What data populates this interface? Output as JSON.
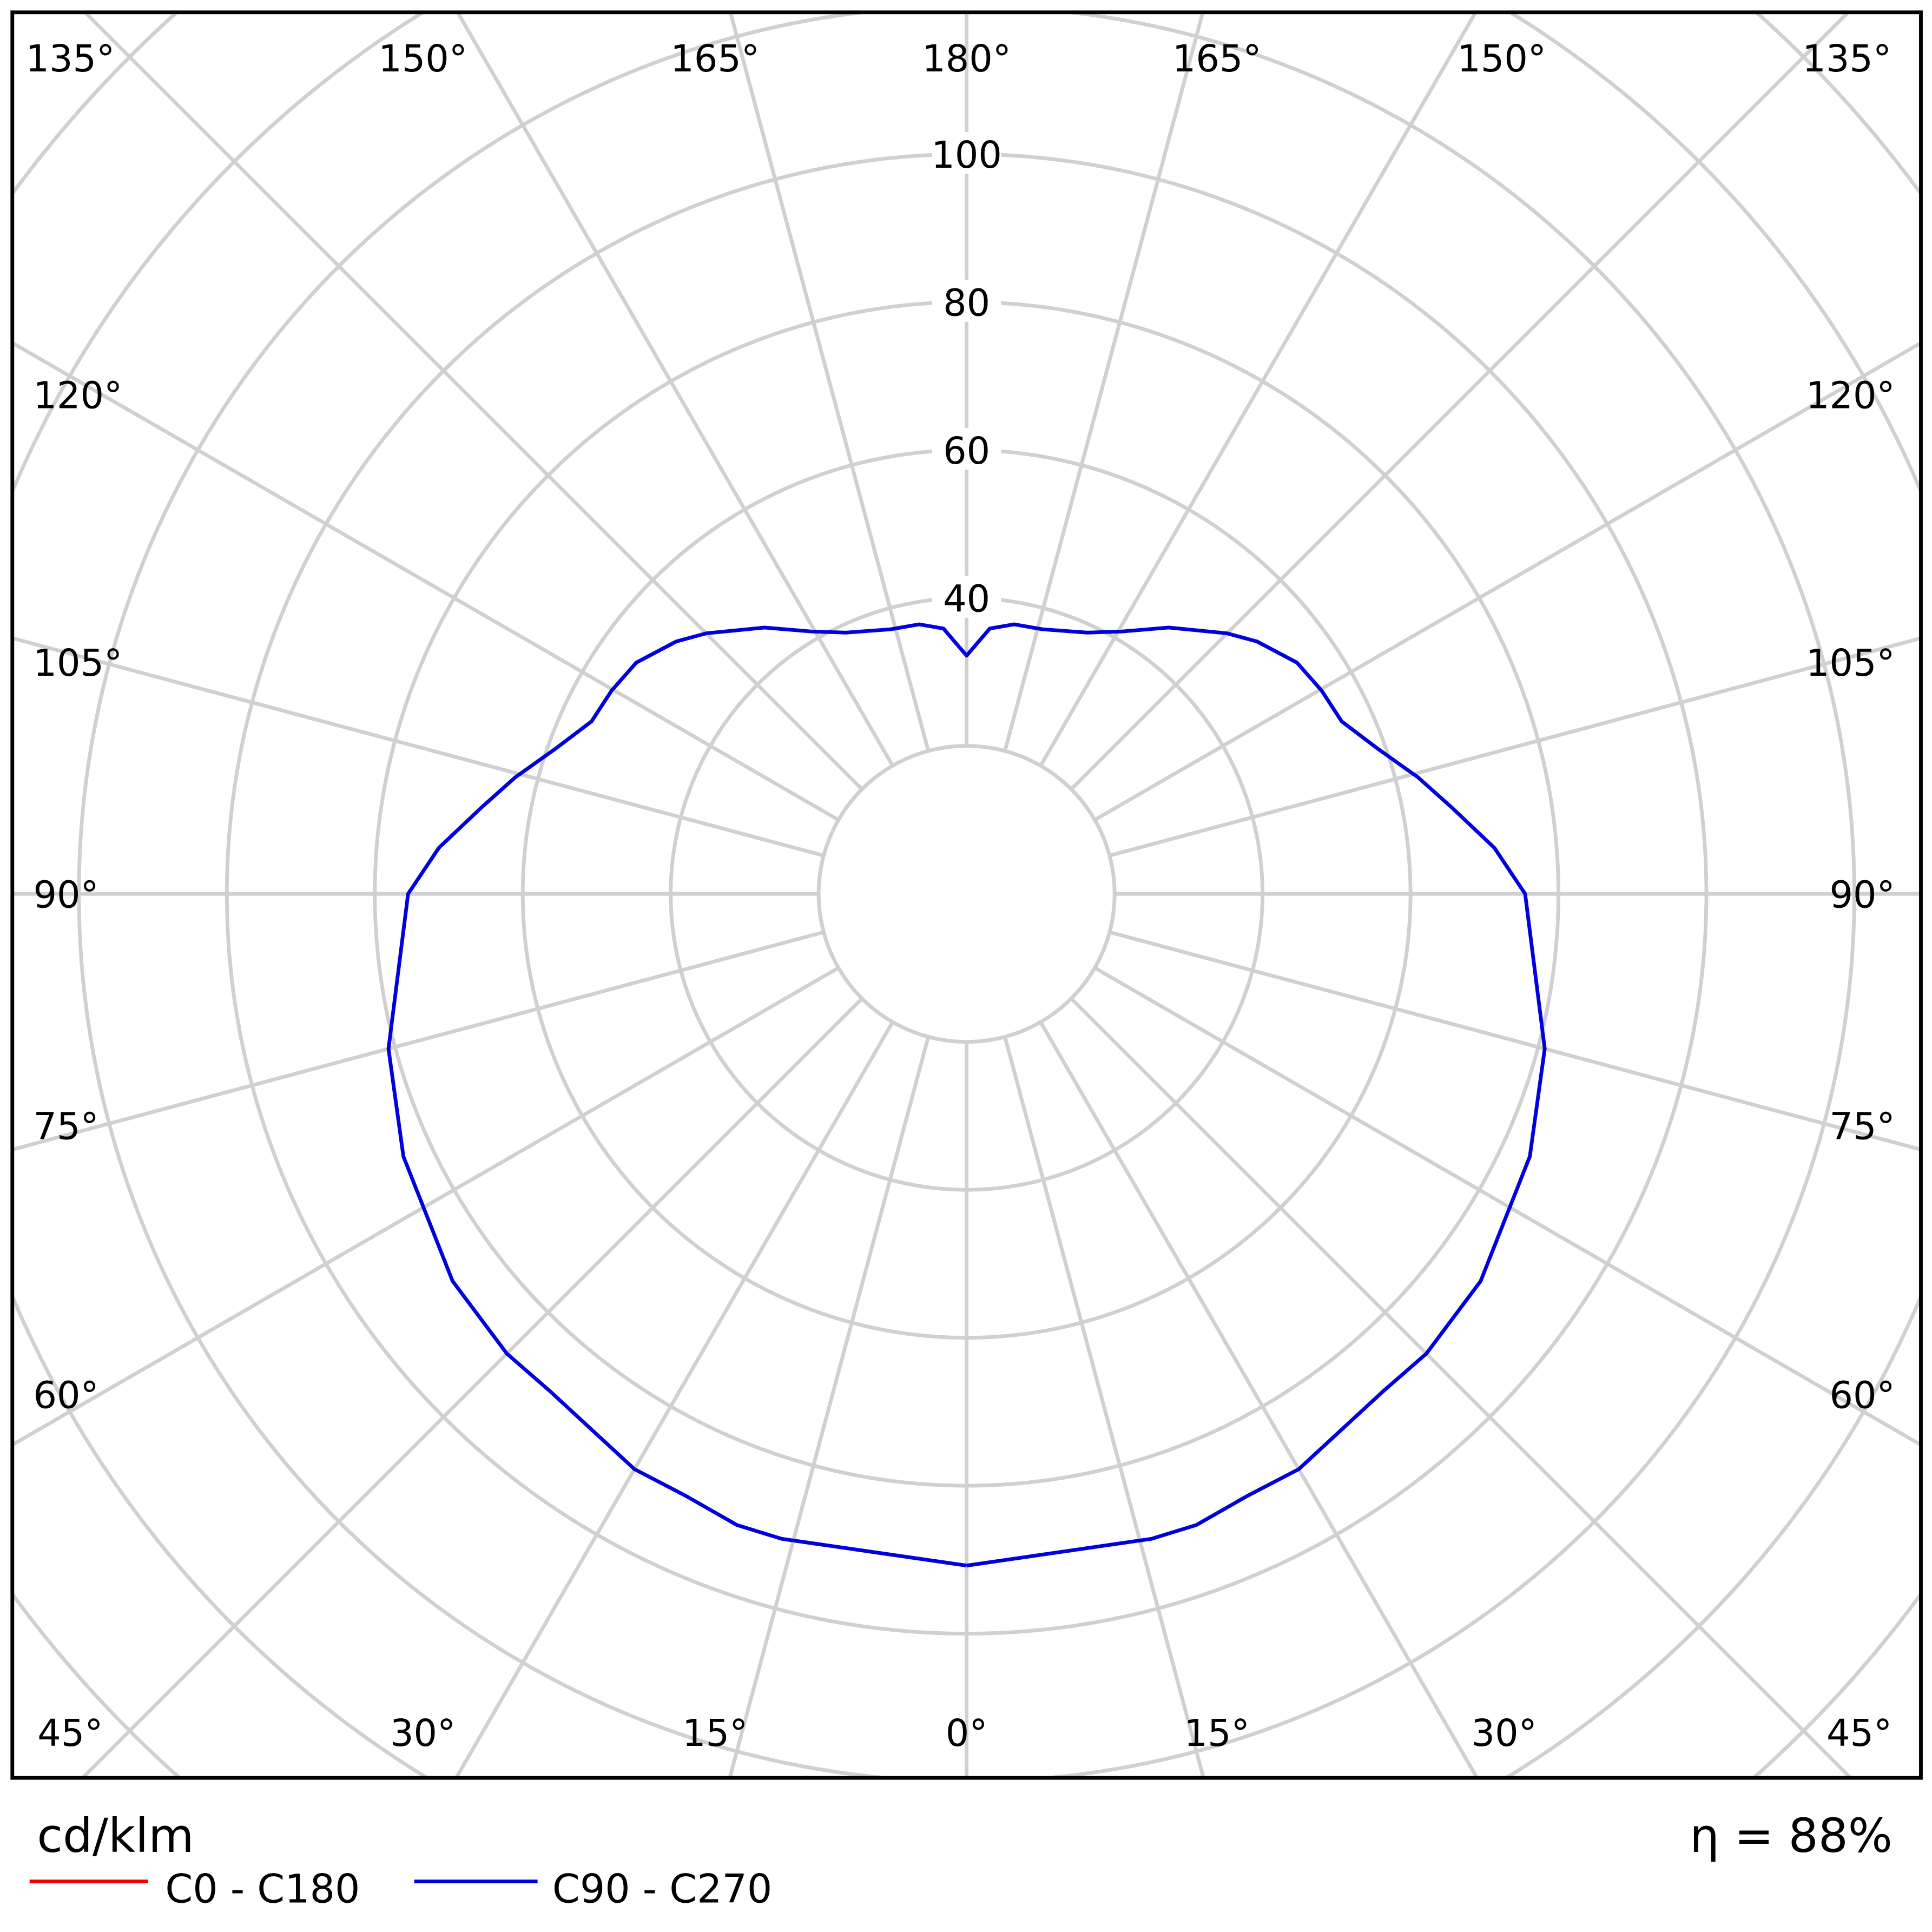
{
  "chart_data": {
    "type": "polar",
    "unit_label": "cd/klm",
    "efficiency_label": "η = 88%",
    "radial_ticks": [
      40,
      60,
      80,
      100
    ],
    "radial_rings": [
      20,
      40,
      60,
      80,
      100,
      120,
      140,
      160,
      180,
      200
    ],
    "grid": true,
    "angle_labels": {
      "top": [
        "135°",
        "150°",
        "165°",
        "180°",
        "165°",
        "150°",
        "135°"
      ],
      "left": [
        "120°",
        "105°",
        "90°",
        "75°",
        "60°"
      ],
      "right": [
        "120°",
        "105°",
        "90°",
        "75°",
        "60°"
      ],
      "bottom": [
        "45°",
        "30°",
        "15°",
        "0°",
        "15°",
        "30°",
        "45°"
      ]
    },
    "legend": [
      {
        "name": "C0 - C180",
        "color": "#ee0000"
      },
      {
        "name": "C90 - C270",
        "color": "#0000dd"
      }
    ],
    "legend_placement": "bottom-left",
    "series": [
      {
        "name": "C90 - C270",
        "color": "#0000dd",
        "gamma": [
          0,
          16,
          20,
          25,
          30,
          40,
          45,
          53,
          65,
          75,
          90,
          95,
          100,
          104.5,
          109.5,
          114.7,
          119.8,
          125,
          131,
          135,
          142.8,
          149.4,
          155.2,
          164,
          170,
          175,
          180
        ],
        "values": [
          90.8,
          90.7,
          90.8,
          89.8,
          89.8,
          87.7,
          87.9,
          87,
          84,
          80.9,
          75.5,
          71.6,
          66.7,
          63,
          58.9,
          55.8,
          55.3,
          54.5,
          52,
          49.8,
          45.2,
          41.2,
          38.9,
          37.2,
          37,
          36,
          32.2
        ]
      }
    ]
  }
}
